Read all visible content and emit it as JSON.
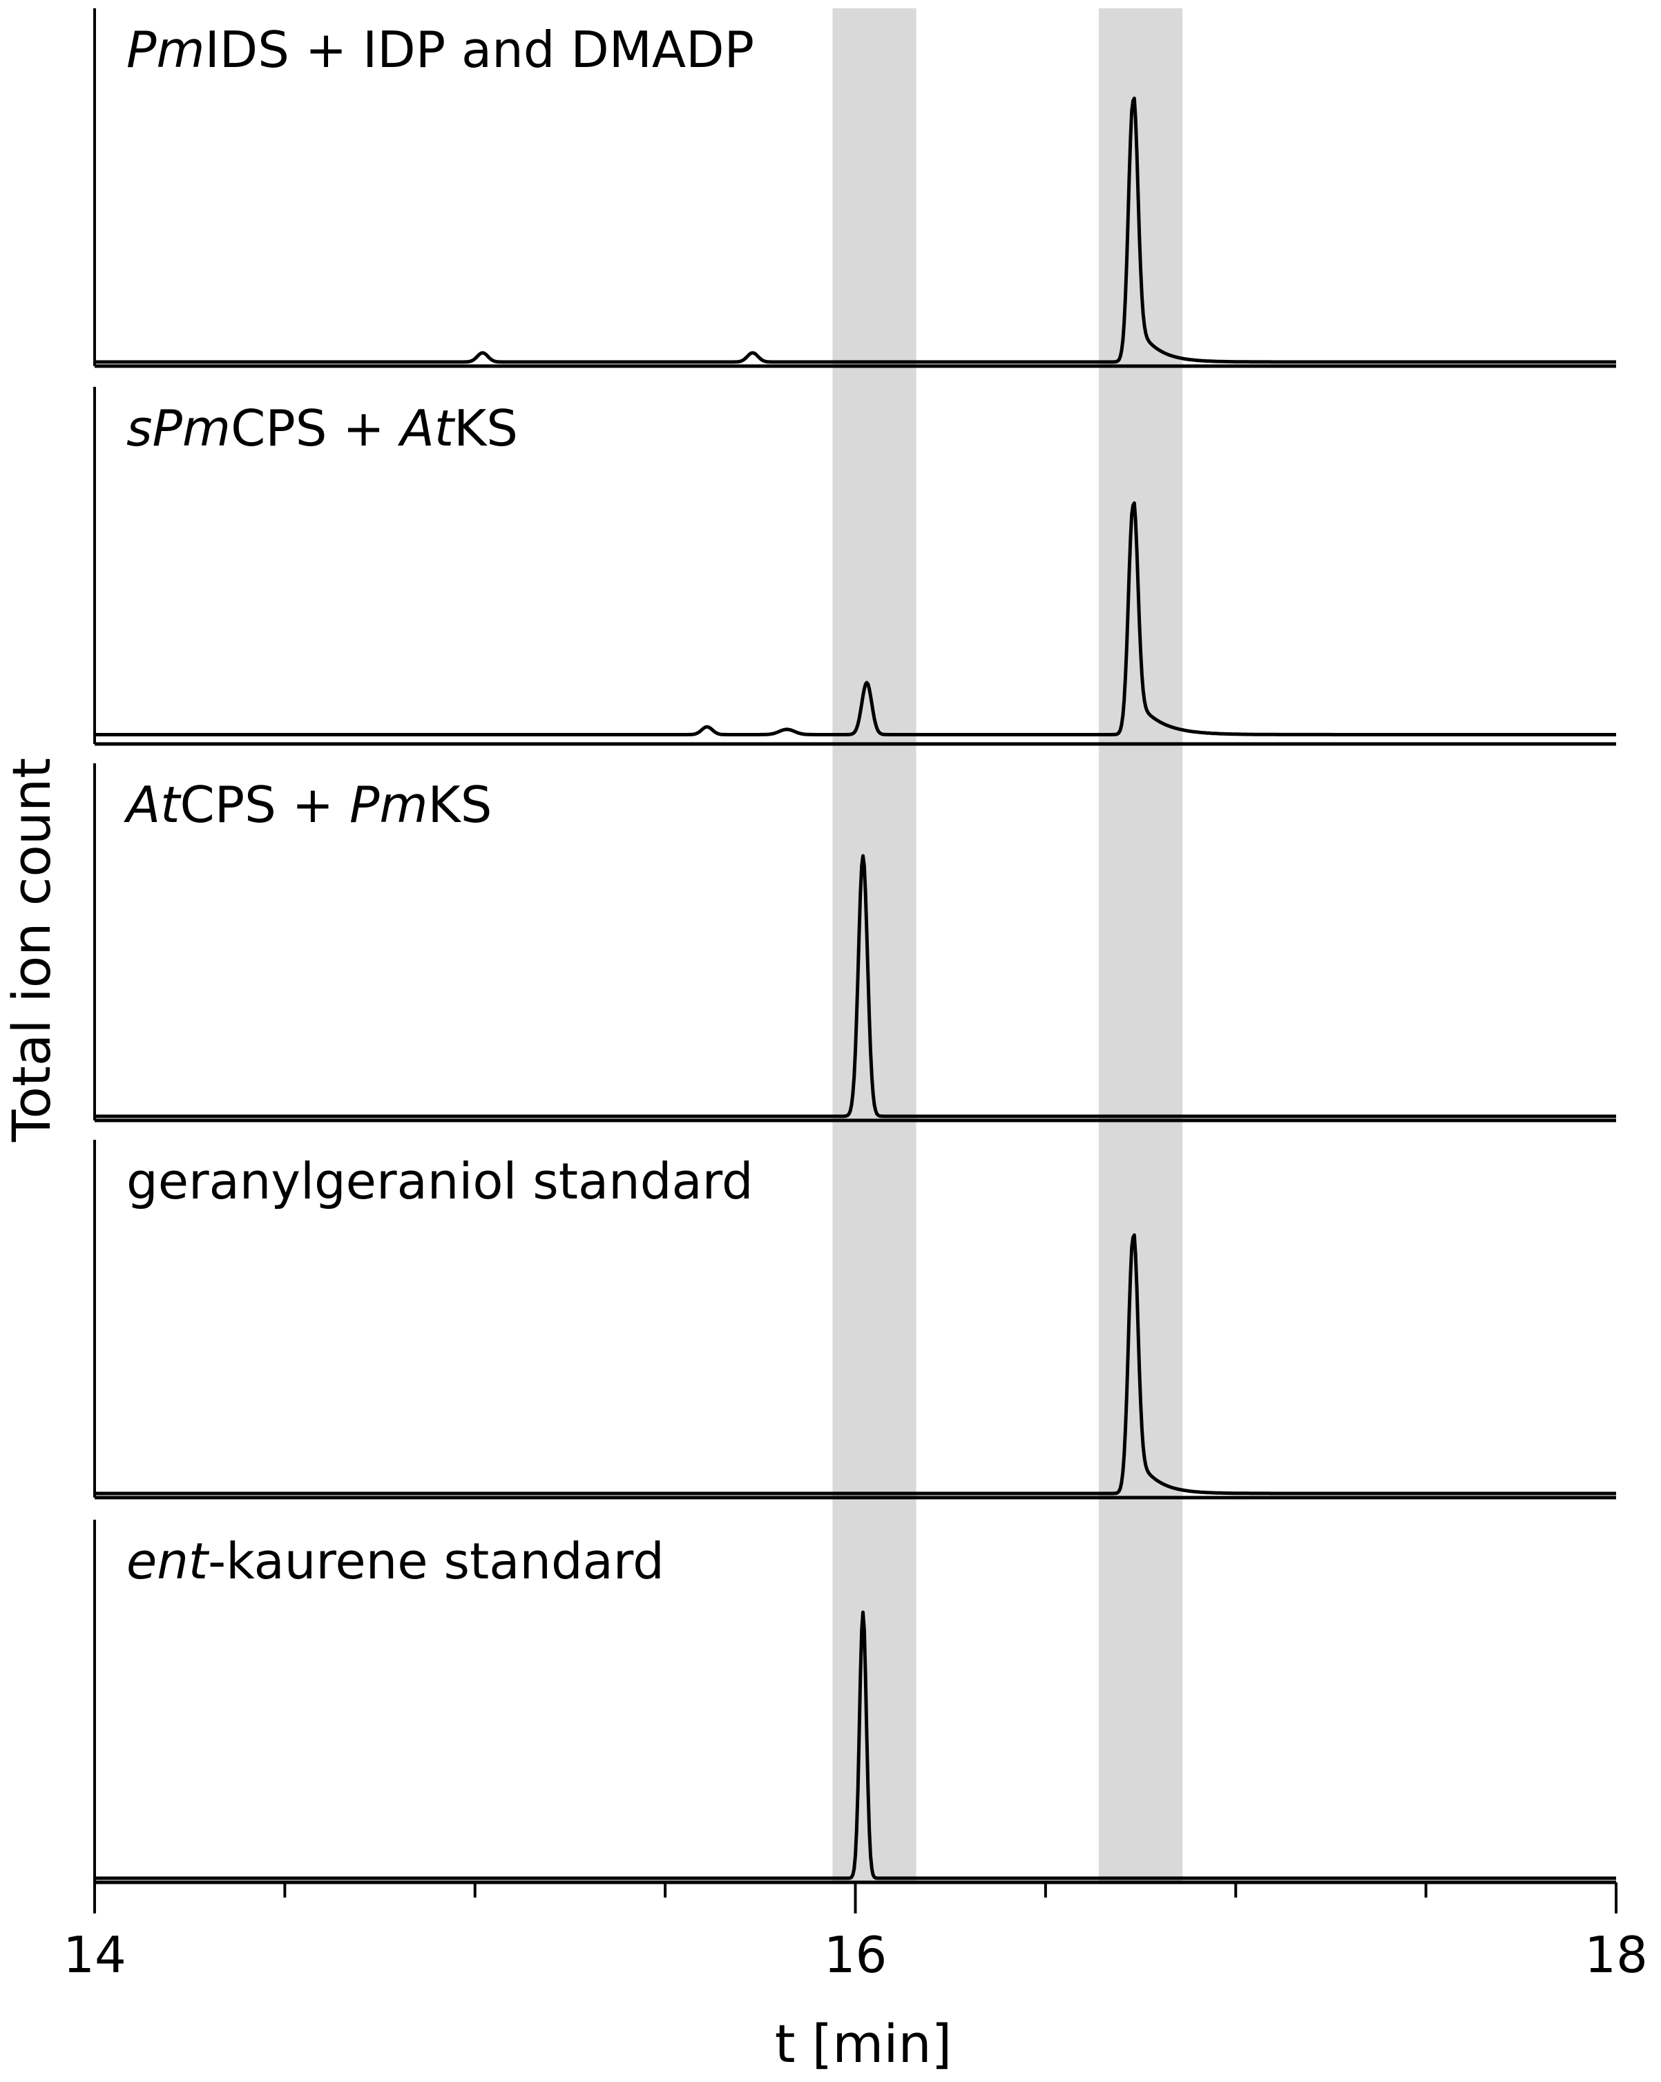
{
  "chart_data": {
    "type": "line",
    "ylabel": "Total ion count",
    "xlabel": "t [min]",
    "xlim": [
      14,
      18
    ],
    "xticks": [
      {
        "value": 14,
        "label": "14"
      },
      {
        "value": 16,
        "label": "16"
      },
      {
        "value": 18,
        "label": "18"
      }
    ],
    "highlight_bands": [
      {
        "x0": 15.94,
        "x1": 16.16
      },
      {
        "x0": 16.64,
        "x1": 16.86
      }
    ],
    "panels": [
      {
        "label_parts": [
          {
            "text": "Pm",
            "italic": true
          },
          {
            "text": "IDS + IDP and DMADP",
            "italic": false
          }
        ],
        "peaks": [
          {
            "x": 15.02,
            "height": 0.035,
            "width": 0.014
          },
          {
            "x": 15.73,
            "height": 0.035,
            "width": 0.014
          },
          {
            "x": 16.73,
            "height": 1.0,
            "width": 0.012,
            "tail": 0.05
          }
        ],
        "baseline": 0.0
      },
      {
        "label_parts": [
          {
            "text": "sPm",
            "italic": true
          },
          {
            "text": "CPS + ",
            "italic": false
          },
          {
            "text": "At",
            "italic": true
          },
          {
            "text": "KS",
            "italic": false
          }
        ],
        "peaks": [
          {
            "x": 15.61,
            "height": 0.03,
            "width": 0.014
          },
          {
            "x": 15.82,
            "height": 0.02,
            "width": 0.02
          },
          {
            "x": 16.03,
            "height": 0.2,
            "width": 0.013
          },
          {
            "x": 16.73,
            "height": 0.88,
            "width": 0.012,
            "tail": 0.06
          }
        ],
        "baseline": 0.02
      },
      {
        "label_parts": [
          {
            "text": "At",
            "italic": true
          },
          {
            "text": "CPS + ",
            "italic": false
          },
          {
            "text": "Pm",
            "italic": true
          },
          {
            "text": "KS",
            "italic": false
          }
        ],
        "peaks": [
          {
            "x": 16.02,
            "height": 1.0,
            "width": 0.012
          }
        ],
        "baseline": 0.0
      },
      {
        "label_parts": [
          {
            "text": "geranylgeraniol standard",
            "italic": false
          }
        ],
        "peaks": [
          {
            "x": 16.73,
            "height": 0.98,
            "width": 0.012,
            "tail": 0.05
          }
        ],
        "baseline": 0.0
      },
      {
        "label_parts": [
          {
            "text": "ent",
            "italic": true
          },
          {
            "text": "-kaurene standard",
            "italic": false
          }
        ],
        "peaks": [
          {
            "x": 16.02,
            "height": 1.0,
            "width": 0.009
          }
        ],
        "baseline": 0.0
      }
    ]
  }
}
